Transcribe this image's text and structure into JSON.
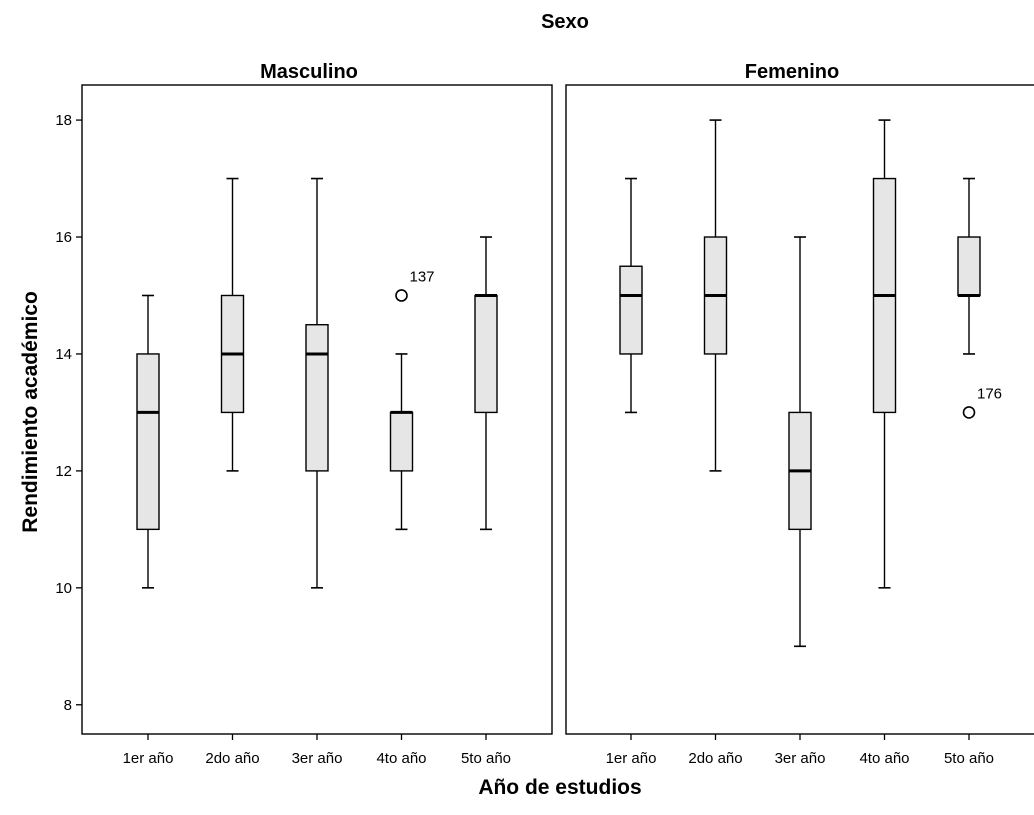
{
  "chart_data": {
    "type": "boxplot",
    "title": "Sexo",
    "xlabel": "Año de estudios",
    "ylabel": "Rendimiento académico",
    "ylim": [
      7.5,
      18.6
    ],
    "yticks": [
      "8",
      "10",
      "12",
      "14",
      "16",
      "18"
    ],
    "categories": [
      "1er año",
      "2do año",
      "3er año",
      "4to año",
      "5to año"
    ],
    "box_color": "#e6e6e6",
    "panels": [
      {
        "name": "Masculino",
        "boxes": [
          {
            "category": "1er año",
            "min": 10,
            "q1": 11,
            "median": 13,
            "q3": 14,
            "max": 15
          },
          {
            "category": "2do año",
            "min": 12,
            "q1": 13,
            "median": 14,
            "q3": 15,
            "max": 17
          },
          {
            "category": "3er año",
            "min": 10,
            "q1": 12,
            "median": 14,
            "q3": 14.5,
            "max": 17
          },
          {
            "category": "4to año",
            "min": 11,
            "q1": 12,
            "median": 13,
            "q3": 13,
            "max": 14
          },
          {
            "category": "5to año",
            "min": 11,
            "q1": 13,
            "median": 15,
            "q3": 15,
            "max": 16
          }
        ],
        "outliers": [
          {
            "category": "4to año",
            "value": 15,
            "label": "137"
          }
        ]
      },
      {
        "name": "Femenino",
        "boxes": [
          {
            "category": "1er año",
            "min": 13,
            "q1": 14,
            "median": 15,
            "q3": 15.5,
            "max": 17
          },
          {
            "category": "2do año",
            "min": 12,
            "q1": 14,
            "median": 15,
            "q3": 16,
            "max": 18
          },
          {
            "category": "3er año",
            "min": 9,
            "q1": 11,
            "median": 12,
            "q3": 13,
            "max": 16
          },
          {
            "category": "4to año",
            "min": 10,
            "q1": 13,
            "median": 15,
            "q3": 17,
            "max": 18
          },
          {
            "category": "5to año",
            "min": 14,
            "q1": 15,
            "median": 15,
            "q3": 16,
            "max": 17
          }
        ],
        "outliers": [
          {
            "category": "5to año",
            "value": 13,
            "label": "176"
          }
        ]
      }
    ]
  }
}
